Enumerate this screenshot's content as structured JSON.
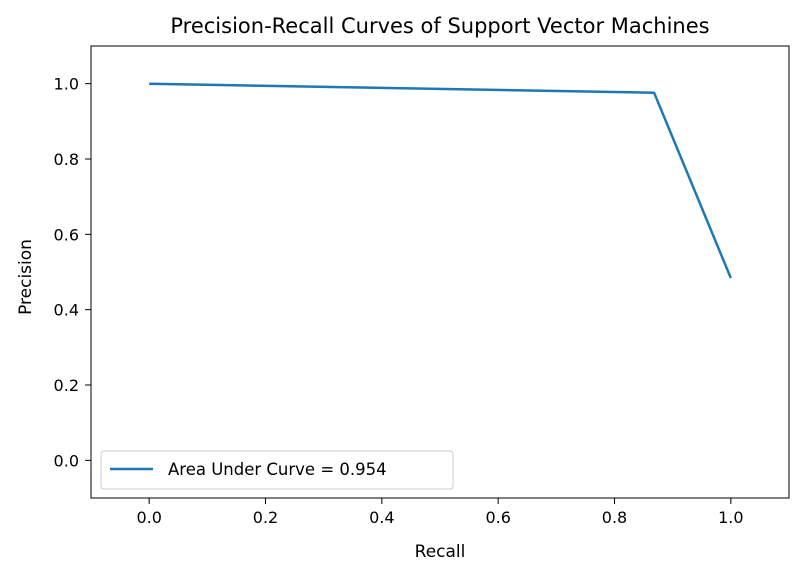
{
  "chart_data": {
    "type": "line",
    "title": "Precision-Recall Curves of Support Vector Machines",
    "xlabel": "Recall",
    "ylabel": "Precision",
    "xlim": [
      -0.1,
      1.1
    ],
    "ylim": [
      -0.1,
      1.1
    ],
    "xticks": [
      0.0,
      0.2,
      0.4,
      0.6,
      0.8,
      1.0
    ],
    "xtick_labels": [
      "0.0",
      "0.2",
      "0.4",
      "0.6",
      "0.8",
      "1.0"
    ],
    "yticks": [
      0.0,
      0.2,
      0.4,
      0.6,
      0.8,
      1.0
    ],
    "ytick_labels": [
      "0.0",
      "0.2",
      "0.4",
      "0.6",
      "0.8",
      "1.0"
    ],
    "grid": false,
    "legend_position": "lower-left",
    "series": [
      {
        "name": "Area Under Curve = 0.954",
        "color": "#1f77b4",
        "x": [
          0.0,
          0.868,
          1.0
        ],
        "y": [
          1.0,
          0.976,
          0.484
        ]
      }
    ]
  }
}
